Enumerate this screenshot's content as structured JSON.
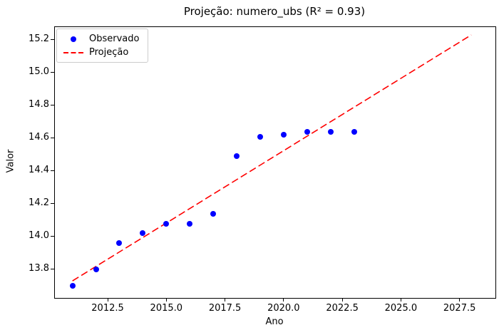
{
  "chart_data": {
    "type": "scatter",
    "title": "Projeção: numero_ubs (R² = 0.93)",
    "xlabel": "Ano",
    "ylabel": "Valor",
    "r_squared": 0.93,
    "grid": false,
    "xlim": [
      2010.25,
      2029.03
    ],
    "ylim": [
      13.626,
      15.278
    ],
    "x_ticks": [
      "2012.5",
      "2015.0",
      "2017.5",
      "2020.0",
      "2022.5",
      "2025.0",
      "2027.5"
    ],
    "y_ticks": [
      "13.8",
      "14.0",
      "14.2",
      "14.4",
      "14.6",
      "14.8",
      "15.0",
      "15.2"
    ],
    "legend": {
      "position": "upper-left",
      "entries": [
        {
          "label": "Observado",
          "marker": "dot",
          "color": "#0000ff"
        },
        {
          "label": "Projeção",
          "marker": "dashed-line",
          "color": "#ff0000"
        }
      ]
    },
    "series": [
      {
        "name": "Observado",
        "type": "scatter",
        "color": "#0000ff",
        "x": [
          2011,
          2012,
          2013,
          2014,
          2015,
          2016,
          2017,
          2018,
          2019,
          2020,
          2021,
          2022,
          2023
        ],
        "y": [
          13.7,
          13.8,
          13.96,
          14.02,
          14.08,
          14.08,
          14.14,
          14.49,
          14.61,
          14.62,
          14.64,
          14.64,
          14.64
        ]
      },
      {
        "name": "Projeção",
        "type": "line",
        "style": "dashed",
        "color": "#ff0000",
        "x": [
          2011,
          2028
        ],
        "y": [
          13.73,
          15.23
        ]
      }
    ]
  }
}
